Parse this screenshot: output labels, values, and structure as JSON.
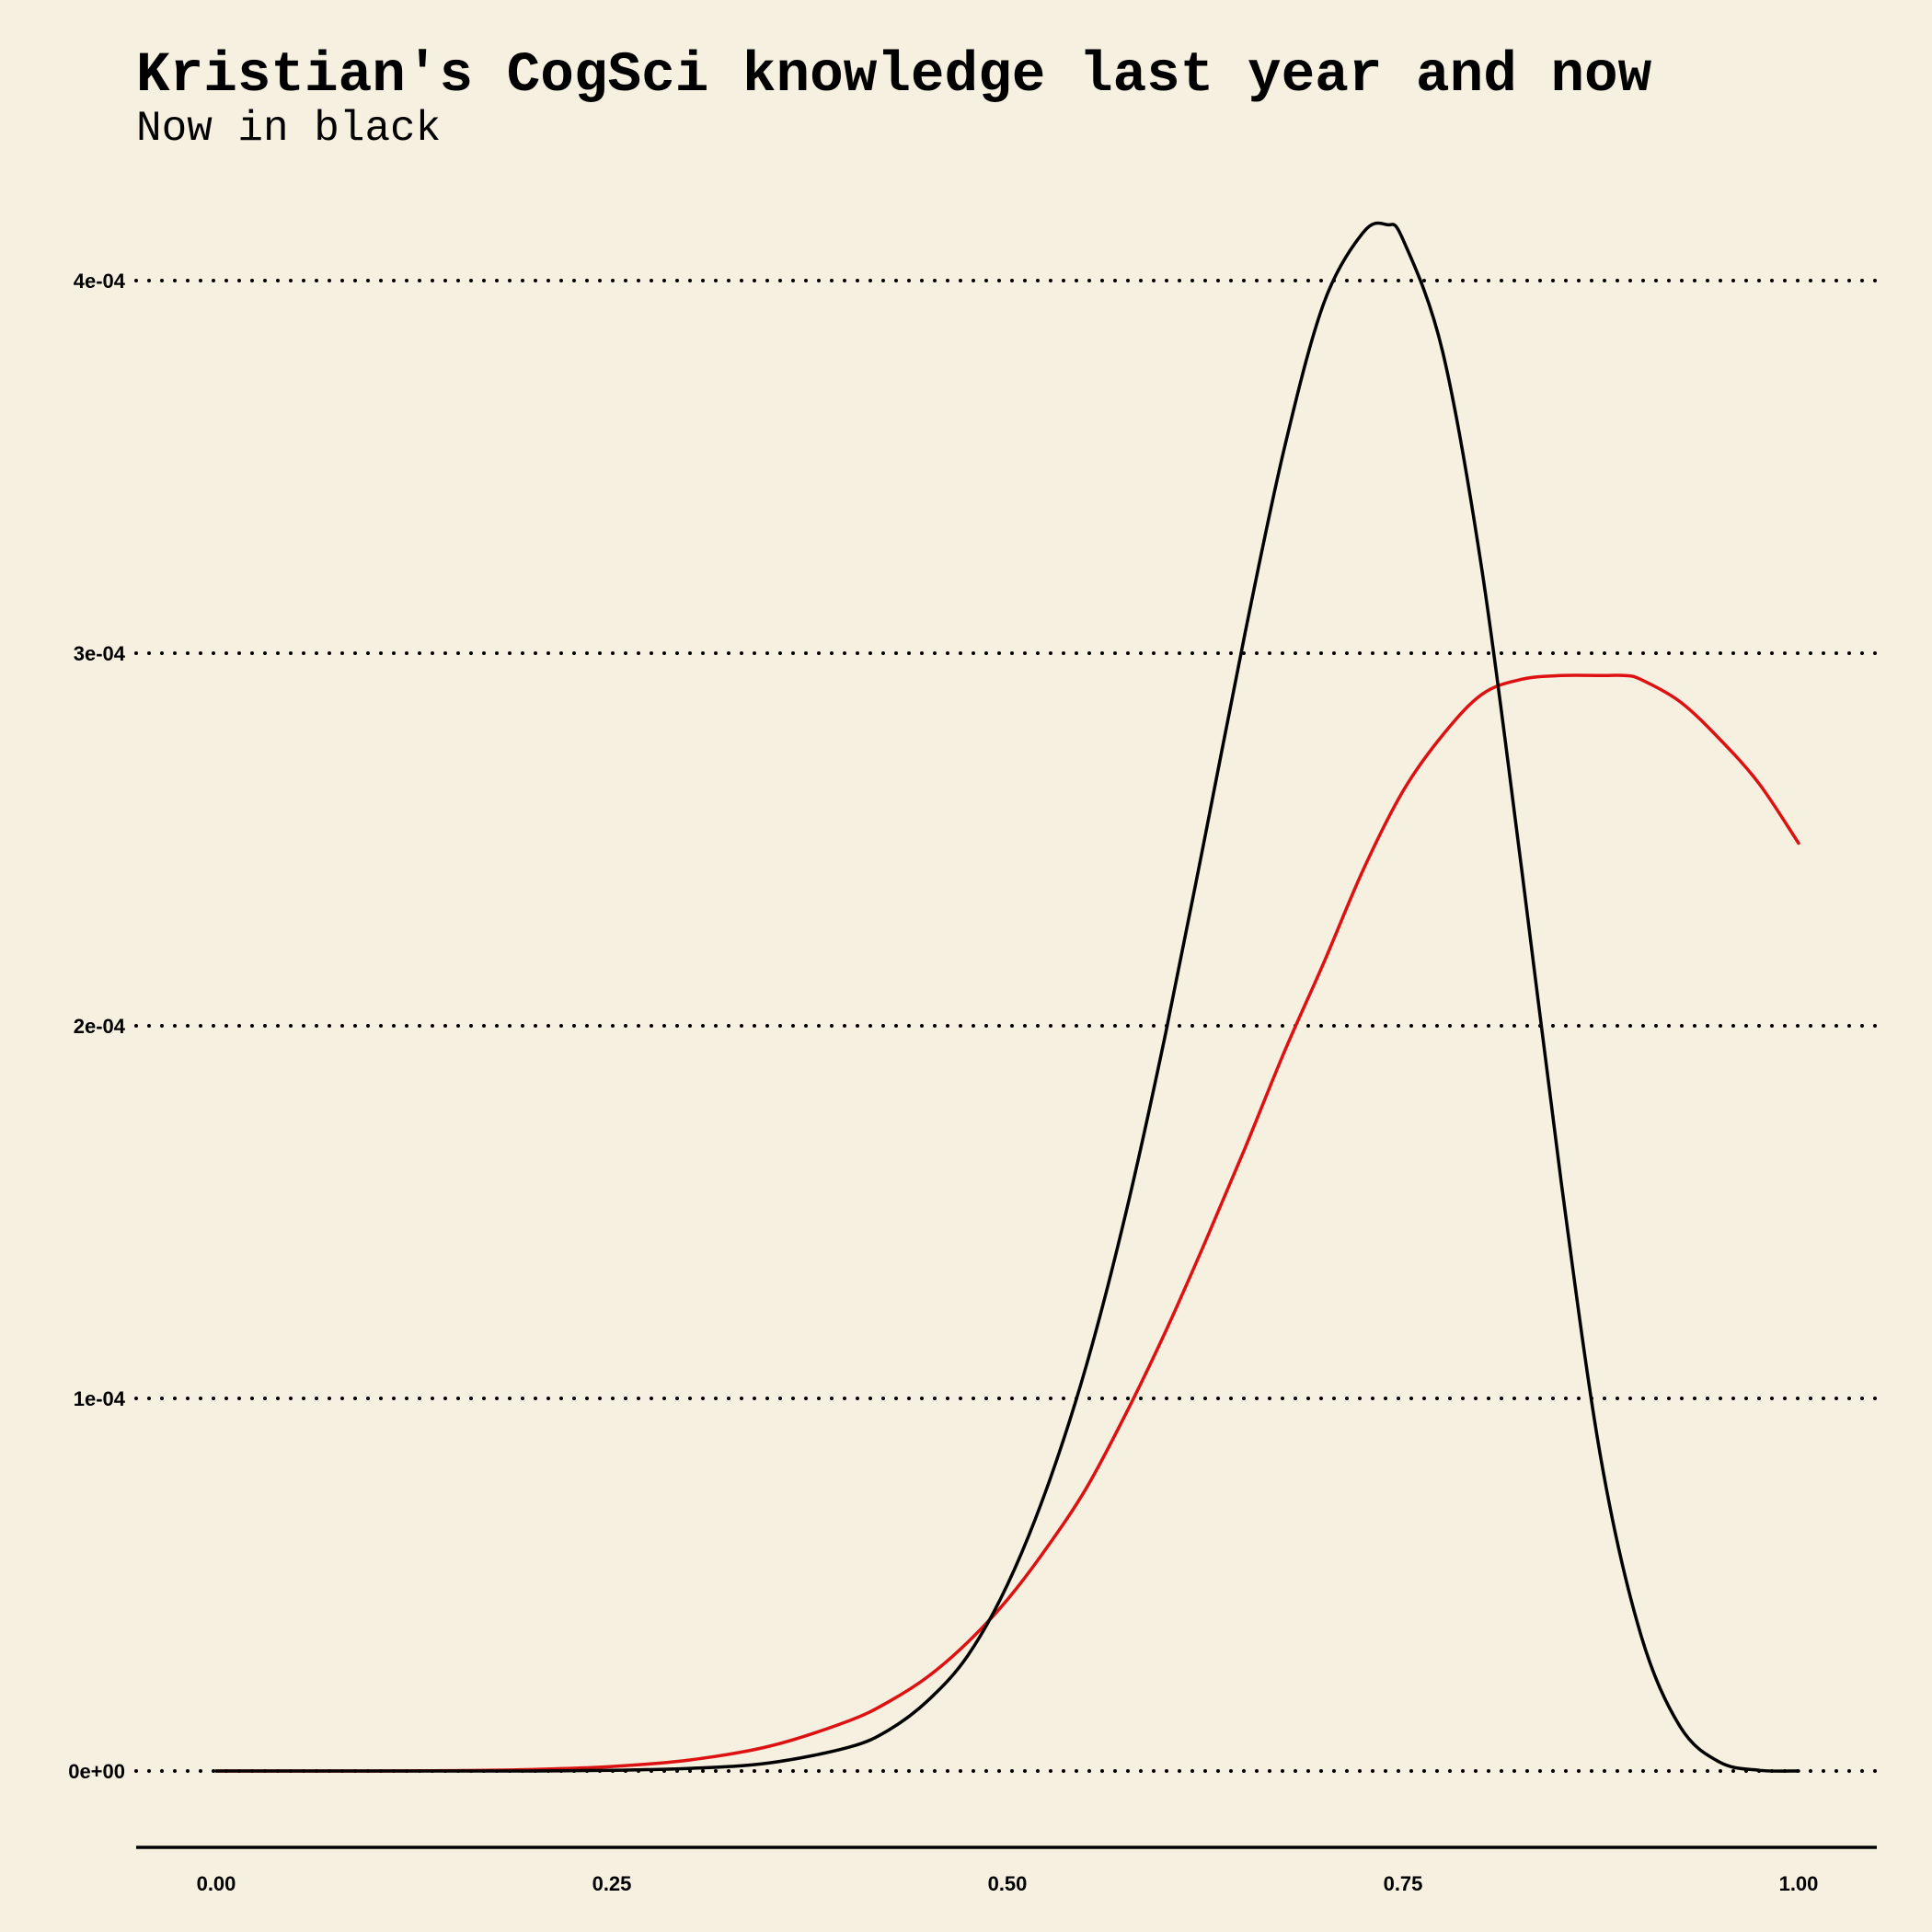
{
  "chart_data": {
    "type": "line",
    "title": "Kristian's CogSci knowledge last year and now",
    "subtitle": "Now in black",
    "xlabel": "",
    "ylabel": "",
    "xlim": [
      0,
      1
    ],
    "ylim": [
      0,
      0.000415
    ],
    "x_ticks": [
      "0.00",
      "0.25",
      "0.50",
      "0.75",
      "1.00"
    ],
    "x_tick_values": [
      0,
      0.25,
      0.5,
      0.75,
      1
    ],
    "y_ticks": [
      "0e+00",
      "1e-04",
      "2e-04",
      "3e-04",
      "4e-04"
    ],
    "y_tick_values": [
      0,
      0.0001,
      0.0002,
      0.0003,
      0.0004
    ],
    "grid": "horizontal dotted",
    "legend": "none",
    "series": [
      {
        "color": "#000000",
        "x": [
          0,
          0.05,
          0.1,
          0.15,
          0.2,
          0.25,
          0.3,
          0.35,
          0.4,
          0.425,
          0.45,
          0.475,
          0.5,
          0.525,
          0.55,
          0.575,
          0.6,
          0.625,
          0.65,
          0.675,
          0.7,
          0.725,
          0.74,
          0.75,
          0.775,
          0.8,
          0.825,
          0.85,
          0.875,
          0.9,
          0.925,
          0.95,
          0.975,
          1
        ],
        "y": [
          0,
          0,
          0,
          0,
          0,
          2e-07,
          7e-07,
          2.2e-06,
          6.4e-06,
          1.1e-05,
          1.9e-05,
          3.1e-05,
          5e-05,
          7.6e-05,
          0.000109,
          0.00015,
          0.000198,
          0.000251,
          0.000305,
          0.000355,
          0.000394,
          0.000413,
          0.000415,
          0.000411,
          0.000381,
          0.000322,
          0.000242,
          0.000158,
          8.4e-05,
          3.7e-05,
          1.2e-05,
          2.4e-06,
          2e-07,
          0
        ]
      },
      {
        "color": "#dd1111",
        "x": [
          0,
          0.05,
          0.1,
          0.15,
          0.2,
          0.25,
          0.3,
          0.35,
          0.4,
          0.425,
          0.45,
          0.475,
          0.5,
          0.525,
          0.55,
          0.575,
          0.6,
          0.625,
          0.65,
          0.675,
          0.7,
          0.725,
          0.75,
          0.775,
          0.8,
          0.825,
          0.85,
          0.875,
          0.89,
          0.9,
          0.925,
          0.95,
          0.975,
          1
        ],
        "y": [
          0,
          0,
          0,
          1e-07,
          4e-07,
          1.2e-06,
          3e-06,
          6.7e-06,
          1.35e-05,
          1.86e-05,
          2.54e-05,
          3.46e-05,
          4.6e-05,
          6e-05,
          7.6e-05,
          9.6e-05,
          0.000118,
          0.000142,
          0.000167,
          0.000193,
          0.000217,
          0.000242,
          0.000263,
          0.000278,
          0.000289,
          0.000293,
          0.000294,
          0.000294,
          0.000294,
          0.000293,
          0.000287,
          0.000277,
          0.000265,
          0.000249
        ]
      }
    ]
  }
}
